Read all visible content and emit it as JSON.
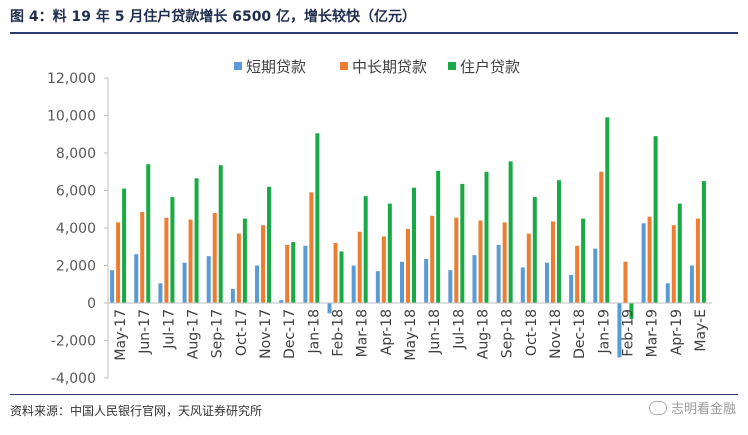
{
  "header": {
    "title": "图 4：料 19 年 5 月住户贷款增长 6500 亿，增长较快（亿元）"
  },
  "footer": {
    "source": "资料来源：中国人民银行官网，天风证券研究所",
    "watermark": "志明看金融"
  },
  "colors": {
    "short": "#5b9bd5",
    "medium": "#ed7d31",
    "household": "#1aaa45",
    "title_rule": "#2a3d6e"
  },
  "chart_data": {
    "type": "bar",
    "title": "",
    "xlabel": "",
    "ylabel": "",
    "ylim": [
      -4000,
      12000
    ],
    "yticks": [
      -4000,
      -2000,
      0,
      2000,
      4000,
      6000,
      8000,
      10000,
      12000
    ],
    "ytick_labels": [
      "-4,000",
      "-2,000",
      "0",
      "2,000",
      "4,000",
      "6,000",
      "8,000",
      "10,000",
      "12,000"
    ],
    "legend_position": "top-center",
    "grid": false,
    "categories": [
      "May-17",
      "Jun-17",
      "Jul-17",
      "Aug-17",
      "Sep-17",
      "Oct-17",
      "Nov-17",
      "Dec-17",
      "Jan-18",
      "Feb-18",
      "Mar-18",
      "Apr-18",
      "May-18",
      "Jun-18",
      "Jul-18",
      "Aug-18",
      "Sep-18",
      "Oct-18",
      "Nov-18",
      "Dec-18",
      "Jan-19",
      "Feb-19",
      "Mar-19",
      "Apr-19",
      "May-E"
    ],
    "series": [
      {
        "name": "短期贷款",
        "color": "#5b9bd5",
        "values": [
          1750,
          2600,
          1050,
          2150,
          2500,
          750,
          2000,
          150,
          3050,
          -550,
          2000,
          1700,
          2200,
          2350,
          1750,
          2550,
          3100,
          1900,
          2150,
          1500,
          2900,
          -2900,
          4250,
          1050,
          2000
        ]
      },
      {
        "name": "中长期贷款",
        "color": "#ed7d31",
        "values": [
          4300,
          4850,
          4550,
          4450,
          4800,
          3700,
          4150,
          3100,
          5900,
          3200,
          3800,
          3550,
          3950,
          4650,
          4550,
          4400,
          4300,
          3700,
          4350,
          3050,
          7000,
          2200,
          4600,
          4150,
          4500
        ]
      },
      {
        "name": "住户贷款",
        "color": "#1aaa45",
        "values": [
          6100,
          7400,
          5650,
          6650,
          7350,
          4500,
          6200,
          3250,
          9050,
          2750,
          5700,
          5300,
          6150,
          7050,
          6350,
          7000,
          7550,
          5650,
          6550,
          4500,
          9900,
          -850,
          8900,
          5300,
          6500
        ]
      }
    ]
  }
}
